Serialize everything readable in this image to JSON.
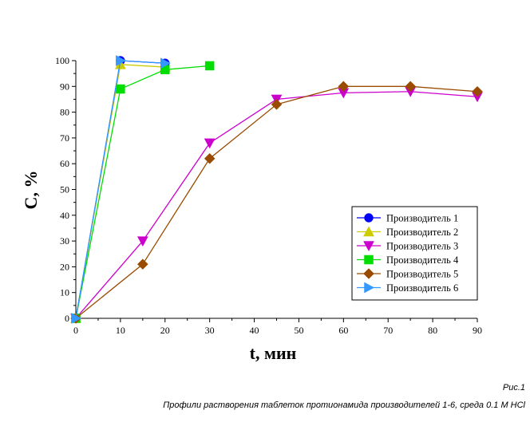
{
  "chart_data": {
    "type": "line",
    "xlabel": "t, мин",
    "ylabel": "С, %",
    "xlim": [
      0,
      90
    ],
    "ylim": [
      0,
      100
    ],
    "xticks": [
      0,
      10,
      20,
      30,
      40,
      50,
      60,
      70,
      80,
      90
    ],
    "yticks": [
      0,
      10,
      20,
      30,
      40,
      50,
      60,
      70,
      80,
      90,
      100
    ],
    "grid": false,
    "legend_position": "bottom-right",
    "series": [
      {
        "name": "Производитель 1",
        "color": "#0000ff",
        "marker": "circle",
        "x": [
          0,
          10,
          20
        ],
        "y": [
          0,
          100,
          99
        ]
      },
      {
        "name": "Производитель 2",
        "color": "#cccc00",
        "marker": "triangle-up",
        "x": [
          0,
          10,
          20
        ],
        "y": [
          0,
          98.5,
          97.5
        ]
      },
      {
        "name": "Производитель 3",
        "color": "#cc00cc",
        "marker": "triangle-down",
        "x": [
          0,
          15,
          30,
          45,
          60,
          75,
          90
        ],
        "y": [
          0,
          30,
          68,
          85,
          87.5,
          88,
          86
        ]
      },
      {
        "name": "Производитель 4",
        "color": "#00dd00",
        "marker": "square",
        "x": [
          0,
          10,
          20,
          30
        ],
        "y": [
          0,
          89,
          96.5,
          98
        ]
      },
      {
        "name": "Производитель 5",
        "color": "#994c00",
        "marker": "diamond",
        "x": [
          0,
          15,
          30,
          45,
          60,
          75,
          90
        ],
        "y": [
          0,
          21,
          62,
          83,
          90,
          90,
          88
        ]
      },
      {
        "name": "Производитель 6",
        "color": "#3399ff",
        "marker": "triangle-right",
        "x": [
          0,
          10,
          20
        ],
        "y": [
          0,
          100,
          99
        ]
      }
    ]
  },
  "caption": {
    "figure_number": "Рис.1",
    "text": "Профили растворения таблеток протионамида производителей 1-6, среда 0.1 М HCl"
  }
}
